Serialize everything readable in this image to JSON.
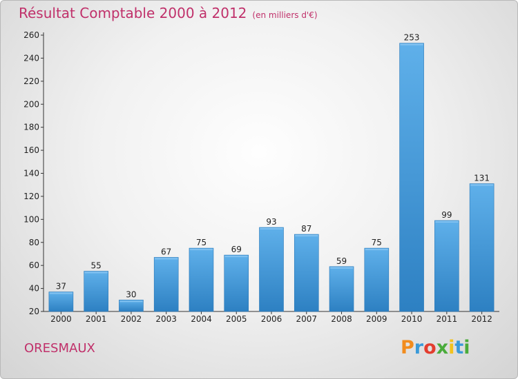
{
  "header": {
    "title": "Résultat Comptable 2000 à 2012",
    "unit": "(en milliers d'€)"
  },
  "footer": {
    "commune": "ORESMAUX",
    "logo_text": "Proxiti"
  },
  "colors": {
    "title": "#c0306a",
    "bar_light": "#5fb0ea",
    "bar_dark": "#2d80c2"
  },
  "chart_data": {
    "type": "bar",
    "title": "Résultat Comptable 2000 à 2012",
    "subtitle": "(en milliers d'€)",
    "xlabel": "",
    "ylabel": "",
    "categories": [
      "2000",
      "2001",
      "2002",
      "2003",
      "2004",
      "2005",
      "2006",
      "2007",
      "2008",
      "2009",
      "2010",
      "2011",
      "2012"
    ],
    "values": [
      37,
      55,
      30,
      67,
      75,
      69,
      93,
      87,
      59,
      75,
      253,
      99,
      131
    ],
    "ylim": [
      20,
      260
    ],
    "yticks": [
      20,
      40,
      60,
      80,
      100,
      120,
      140,
      160,
      180,
      200,
      220,
      240,
      260
    ],
    "grid": false
  }
}
